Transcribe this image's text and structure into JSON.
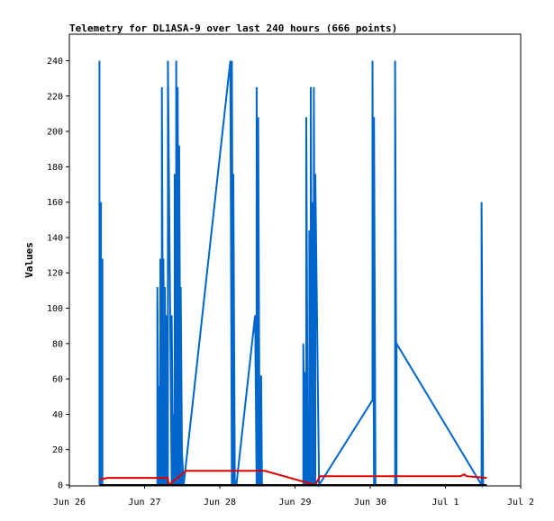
{
  "chart_data": {
    "type": "line",
    "title": "Telemetry for DL1ASA-9 over last 240 hours (666 points)",
    "xlabel": "",
    "ylabel": "Values",
    "x_unit": "date",
    "xlim": [
      "Jun 26",
      "Jul 2"
    ],
    "x_ticks": [
      "Jun 26",
      "Jun 27",
      "Jun 28",
      "Jun 29",
      "Jun 30",
      "Jul 1",
      "Jul 2"
    ],
    "ylim": [
      0,
      255
    ],
    "y_ticks": [
      0,
      20,
      40,
      60,
      80,
      100,
      120,
      140,
      160,
      180,
      200,
      220,
      240
    ],
    "grid": false,
    "legend": "none",
    "series": [
      {
        "color": "#0066cc",
        "x_days": [
          0.4,
          0.4,
          0.4,
          0.42,
          0.42,
          0.44,
          0.44,
          0.46,
          1.17,
          1.17,
          1.19,
          1.19,
          1.21,
          1.21,
          1.23,
          1.23,
          1.25,
          1.25,
          1.27,
          1.27,
          1.29,
          1.29,
          1.31,
          1.31,
          1.36,
          1.36,
          1.38,
          1.38,
          1.4,
          1.4,
          1.42,
          1.42,
          1.44,
          1.44,
          1.46,
          1.46,
          1.48,
          1.48,
          1.5,
          1.5,
          1.52,
          1.52,
          2.14,
          2.16,
          2.16,
          2.18,
          2.18,
          2.2,
          2.2,
          2.22,
          2.47,
          2.49,
          2.49,
          2.51,
          2.51,
          2.53,
          2.53,
          2.55,
          2.55,
          2.56,
          3.11,
          3.11,
          3.13,
          3.13,
          3.15,
          3.15,
          3.17,
          3.17,
          3.19,
          3.19,
          3.21,
          3.21,
          3.23,
          3.23,
          3.25,
          3.25,
          3.27,
          3.27,
          3.32,
          4.03,
          4.03,
          4.05,
          4.05,
          4.07,
          4.07,
          4.09,
          4.33,
          4.33,
          4.35,
          4.35,
          5.48,
          5.48,
          5.5,
          5.5
        ],
        "values": [
          0,
          240,
          0,
          160,
          0,
          128,
          0,
          0,
          0,
          112,
          0,
          56,
          0,
          128,
          0,
          225,
          0,
          128,
          0,
          112,
          0,
          96,
          0,
          240,
          0,
          96,
          0,
          40,
          0,
          176,
          0,
          240,
          0,
          225,
          0,
          192,
          0,
          112,
          0,
          16,
          0,
          0,
          240,
          0,
          240,
          0,
          176,
          0,
          0,
          0,
          96,
          0,
          225,
          0,
          208,
          0,
          0,
          0,
          62,
          0,
          0,
          80,
          0,
          64,
          0,
          208,
          0,
          0,
          0,
          144,
          0,
          225,
          0,
          160,
          0,
          225,
          0,
          176,
          0,
          48,
          240,
          0,
          208,
          0,
          0,
          0,
          0,
          240,
          0,
          80,
          0,
          160,
          0,
          0
        ]
      },
      {
        "color": "#dd0000",
        "x_days": [
          0.4,
          0.5,
          1.2,
          1.31,
          1.32,
          1.55,
          2.6,
          3.27,
          3.33,
          4.5,
          5.2,
          5.25,
          5.28,
          5.55
        ],
        "values": [
          3,
          4,
          4,
          4,
          0,
          8,
          8,
          0,
          5,
          5,
          5,
          6,
          5,
          4
        ]
      },
      {
        "color": "#000000",
        "x_days": [
          0.4,
          5.55
        ],
        "values": [
          0,
          0
        ]
      }
    ]
  }
}
